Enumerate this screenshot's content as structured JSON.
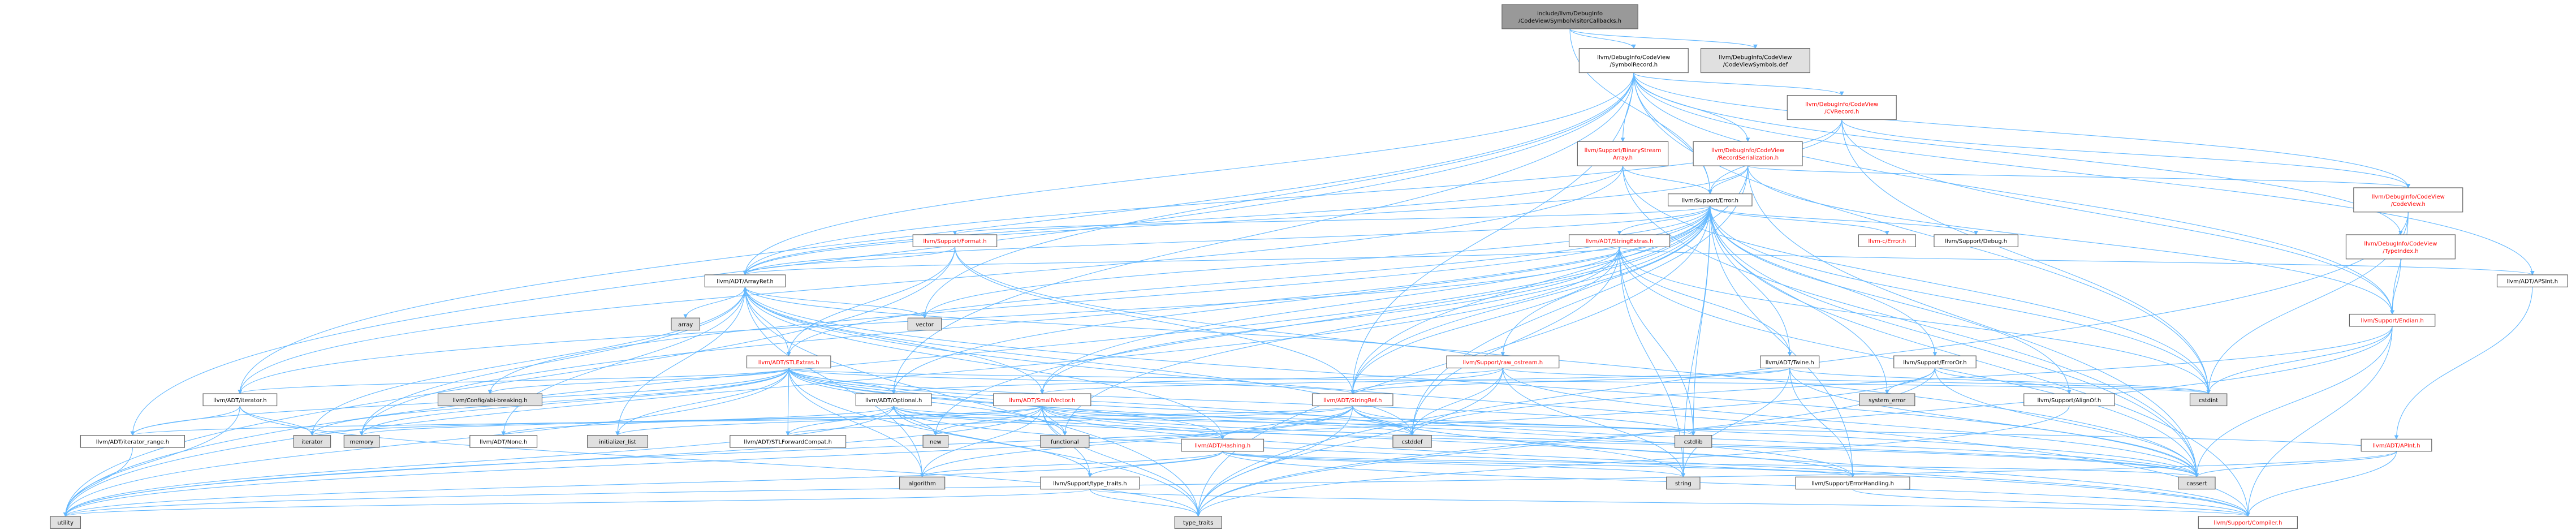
{
  "colors": {
    "edge": "#63b8ff",
    "arrowhead": "#63b8ff",
    "node_border": "#666666",
    "node_fill_default": "#ffffff",
    "node_fill_focus": "#999999",
    "node_fill_system": "#e0e0e0",
    "text_default": "#000000",
    "text_incomplete": "#ff0000"
  },
  "nodes": [
    {
      "id": "root",
      "lines": [
        "include/llvm/DebugInfo",
        "/CodeView/SymbolVisitorCallbacks.h"
      ],
      "kind": "focus"
    },
    {
      "id": "symrecord",
      "lines": [
        "llvm/DebugInfo/CodeView",
        "/SymbolRecord.h"
      ],
      "kind": "normal"
    },
    {
      "id": "cvsymbols",
      "lines": [
        "llvm/DebugInfo/CodeView",
        "/CodeViewSymbols.def"
      ],
      "kind": "system"
    },
    {
      "id": "cvrecord",
      "lines": [
        "llvm/DebugInfo/CodeView",
        "/CVRecord.h"
      ],
      "kind": "incomplete"
    },
    {
      "id": "binstream",
      "lines": [
        "llvm/Support/BinaryStream",
        "Array.h"
      ],
      "kind": "incomplete"
    },
    {
      "id": "recser",
      "lines": [
        "llvm/DebugInfo/CodeView",
        "/RecordSerialization.h"
      ],
      "kind": "incomplete"
    },
    {
      "id": "codeview",
      "lines": [
        "llvm/DebugInfo/CodeView",
        "/CodeView.h"
      ],
      "kind": "incomplete"
    },
    {
      "id": "error",
      "lines": [
        "llvm/Support/Error.h"
      ],
      "kind": "normal"
    },
    {
      "id": "format",
      "lines": [
        "llvm/Support/Format.h"
      ],
      "kind": "incomplete"
    },
    {
      "id": "cerror",
      "lines": [
        "llvm-c/Error.h"
      ],
      "kind": "incomplete"
    },
    {
      "id": "debug",
      "lines": [
        "llvm/Support/Debug.h"
      ],
      "kind": "normal"
    },
    {
      "id": "strextras",
      "lines": [
        "llvm/ADT/StringExtras.h"
      ],
      "kind": "incomplete"
    },
    {
      "id": "typeindex",
      "lines": [
        "llvm/DebugInfo/CodeView",
        "/TypeIndex.h"
      ],
      "kind": "incomplete"
    },
    {
      "id": "apsint",
      "lines": [
        "llvm/ADT/APSInt.h"
      ],
      "kind": "normal"
    },
    {
      "id": "arrayref",
      "lines": [
        "llvm/ADT/ArrayRef.h"
      ],
      "kind": "normal"
    },
    {
      "id": "endian",
      "lines": [
        "llvm/Support/Endian.h"
      ],
      "kind": "incomplete"
    },
    {
      "id": "array",
      "lines": [
        "array"
      ],
      "kind": "system"
    },
    {
      "id": "vector",
      "lines": [
        "vector"
      ],
      "kind": "system"
    },
    {
      "id": "stlextras",
      "lines": [
        "llvm/ADT/STLExtras.h"
      ],
      "kind": "incomplete"
    },
    {
      "id": "rawostream",
      "lines": [
        "llvm/Support/raw_ostream.h"
      ],
      "kind": "incomplete"
    },
    {
      "id": "twine",
      "lines": [
        "llvm/ADT/Twine.h"
      ],
      "kind": "normal"
    },
    {
      "id": "erroror",
      "lines": [
        "llvm/Support/ErrorOr.h"
      ],
      "kind": "normal"
    },
    {
      "id": "apint",
      "lines": [
        "llvm/ADT/APInt.h"
      ],
      "kind": "incomplete"
    },
    {
      "id": "iterator",
      "lines": [
        "llvm/ADT/iterator.h"
      ],
      "kind": "normal"
    },
    {
      "id": "confbreak",
      "lines": [
        "llvm/Config/abi-breaking.h"
      ],
      "kind": "system"
    },
    {
      "id": "optional",
      "lines": [
        "llvm/ADT/Optional.h"
      ],
      "kind": "normal"
    },
    {
      "id": "smallvector",
      "lines": [
        "llvm/ADT/SmallVector.h"
      ],
      "kind": "incomplete"
    },
    {
      "id": "stringref",
      "lines": [
        "llvm/ADT/StringRef.h"
      ],
      "kind": "incomplete"
    },
    {
      "id": "syserror",
      "lines": [
        "system_error"
      ],
      "kind": "system"
    },
    {
      "id": "cstdint",
      "lines": [
        "cstdint"
      ],
      "kind": "system"
    },
    {
      "id": "alignof",
      "lines": [
        "llvm/Support/AlignOf.h"
      ],
      "kind": "normal"
    },
    {
      "id": "iterrange",
      "lines": [
        "llvm/ADT/iterator_range.h"
      ],
      "kind": "normal"
    },
    {
      "id": "iteratorstd",
      "lines": [
        "iterator"
      ],
      "kind": "system"
    },
    {
      "id": "memory",
      "lines": [
        "memory"
      ],
      "kind": "system"
    },
    {
      "id": "none",
      "lines": [
        "llvm/ADT/None.h"
      ],
      "kind": "normal"
    },
    {
      "id": "initlist",
      "lines": [
        "initializer_list"
      ],
      "kind": "system"
    },
    {
      "id": "stlfwd",
      "lines": [
        "llvm/ADT/STLForwardCompat.h"
      ],
      "kind": "normal"
    },
    {
      "id": "new",
      "lines": [
        "new"
      ],
      "kind": "system"
    },
    {
      "id": "functional",
      "lines": [
        "functional"
      ],
      "kind": "system"
    },
    {
      "id": "hashing",
      "lines": [
        "llvm/ADT/Hashing.h"
      ],
      "kind": "incomplete"
    },
    {
      "id": "cstddef",
      "lines": [
        "cstddef"
      ],
      "kind": "system"
    },
    {
      "id": "cstdlib",
      "lines": [
        "cstdlib"
      ],
      "kind": "system"
    },
    {
      "id": "algorithm",
      "lines": [
        "algorithm"
      ],
      "kind": "system"
    },
    {
      "id": "typetraits",
      "lines": [
        "llvm/Support/type_traits.h"
      ],
      "kind": "normal"
    },
    {
      "id": "string",
      "lines": [
        "string"
      ],
      "kind": "system"
    },
    {
      "id": "errhandling",
      "lines": [
        "llvm/Support/ErrorHandling.h"
      ],
      "kind": "normal"
    },
    {
      "id": "cassert",
      "lines": [
        "cassert"
      ],
      "kind": "system"
    },
    {
      "id": "utility",
      "lines": [
        "utility"
      ],
      "kind": "system"
    },
    {
      "id": "type_traits",
      "lines": [
        "type_traits"
      ],
      "kind": "system"
    },
    {
      "id": "compiler",
      "lines": [
        "llvm/Support/Compiler.h"
      ],
      "kind": "incomplete"
    }
  ],
  "edges": [
    [
      "root",
      "symrecord"
    ],
    [
      "root",
      "cvsymbols"
    ],
    [
      "root",
      "error"
    ],
    [
      "symrecord",
      "cvrecord"
    ],
    [
      "symrecord",
      "binstream"
    ],
    [
      "symrecord",
      "recser"
    ],
    [
      "symrecord",
      "codeview"
    ],
    [
      "symrecord",
      "typeindex"
    ],
    [
      "symrecord",
      "apsint"
    ],
    [
      "symrecord",
      "arrayref"
    ],
    [
      "symrecord",
      "endian"
    ],
    [
      "symrecord",
      "stringref"
    ],
    [
      "symrecord",
      "optional"
    ],
    [
      "symrecord",
      "iterator"
    ],
    [
      "symrecord",
      "iterrange"
    ],
    [
      "symrecord",
      "cstdint"
    ],
    [
      "symrecord",
      "vector"
    ],
    [
      "symrecord",
      "error"
    ],
    [
      "cvrecord",
      "error"
    ],
    [
      "cvrecord",
      "codeview"
    ],
    [
      "cvrecord",
      "arrayref"
    ],
    [
      "cvrecord",
      "endian"
    ],
    [
      "cvrecord",
      "cstdint"
    ],
    [
      "binstream",
      "error"
    ],
    [
      "binstream",
      "arrayref"
    ],
    [
      "binstream",
      "iterator"
    ],
    [
      "binstream",
      "cassert"
    ],
    [
      "binstream",
      "cstdint"
    ],
    [
      "recser",
      "error"
    ],
    [
      "recser",
      "codeview"
    ],
    [
      "recser",
      "arrayref"
    ],
    [
      "recser",
      "stringref"
    ],
    [
      "recser",
      "endian"
    ],
    [
      "recser",
      "cstddef"
    ],
    [
      "recser",
      "cassert"
    ],
    [
      "recser",
      "cinttypes"
    ],
    [
      "codeview",
      "endian"
    ],
    [
      "codeview",
      "type_traits"
    ],
    [
      "codeview",
      "cstdint"
    ],
    [
      "error",
      "format"
    ],
    [
      "error",
      "cerror"
    ],
    [
      "error",
      "debug"
    ],
    [
      "error",
      "strextras"
    ],
    [
      "error",
      "stringref"
    ],
    [
      "error",
      "arrayref"
    ],
    [
      "error",
      "twine"
    ],
    [
      "error",
      "erroror"
    ],
    [
      "error",
      "rawostream"
    ],
    [
      "error",
      "smallvector"
    ],
    [
      "error",
      "stlextras"
    ],
    [
      "error",
      "confbreak"
    ],
    [
      "error",
      "alignof"
    ],
    [
      "error",
      "compiler"
    ],
    [
      "error",
      "errhandling"
    ],
    [
      "error",
      "cassert"
    ],
    [
      "error",
      "cstdint"
    ],
    [
      "error",
      "cstdlib"
    ],
    [
      "error",
      "functional"
    ],
    [
      "error",
      "memory"
    ],
    [
      "error",
      "new"
    ],
    [
      "error",
      "optional"
    ],
    [
      "error",
      "string"
    ],
    [
      "error",
      "syserror"
    ],
    [
      "error",
      "type_traits"
    ],
    [
      "error",
      "utility"
    ],
    [
      "error",
      "vector"
    ],
    [
      "format",
      "arrayref"
    ],
    [
      "format",
      "stlextras"
    ],
    [
      "format",
      "stringref"
    ],
    [
      "format",
      "cassert"
    ],
    [
      "format",
      "cstdio"
    ],
    [
      "format",
      "tuple"
    ],
    [
      "format",
      "utility"
    ],
    [
      "strextras",
      "apsint"
    ],
    [
      "strextras",
      "arrayref"
    ],
    [
      "strextras",
      "smallvector"
    ],
    [
      "strextras",
      "stringref"
    ],
    [
      "strextras",
      "twine"
    ],
    [
      "strextras",
      "cassert"
    ],
    [
      "strextras",
      "cstddef"
    ],
    [
      "strextras",
      "cstdint"
    ],
    [
      "strextras",
      "cstdlib"
    ],
    [
      "strextras",
      "cstring"
    ],
    [
      "strextras",
      "iterator"
    ],
    [
      "strextras",
      "string"
    ],
    [
      "strextras",
      "utility"
    ],
    [
      "typeindex",
      "endian"
    ],
    [
      "typeindex",
      "cinttypes"
    ],
    [
      "apsint",
      "apint"
    ],
    [
      "arrayref",
      "hashing"
    ],
    [
      "arrayref",
      "none"
    ],
    [
      "arrayref",
      "smallvector"
    ],
    [
      "arrayref",
      "stlextras"
    ],
    [
      "arrayref",
      "compiler"
    ],
    [
      "arrayref",
      "algorithm"
    ],
    [
      "arrayref",
      "array"
    ],
    [
      "arrayref",
      "cassert"
    ],
    [
      "arrayref",
      "cstddef"
    ],
    [
      "arrayref",
      "initlist"
    ],
    [
      "arrayref",
      "iteratorstd"
    ],
    [
      "arrayref",
      "memory"
    ],
    [
      "arrayref",
      "type_traits"
    ],
    [
      "arrayref",
      "vector"
    ],
    [
      "endian",
      "compiler"
    ],
    [
      "endian",
      "cassert"
    ],
    [
      "endian",
      "cstddef"
    ],
    [
      "endian",
      "cstdint"
    ],
    [
      "endian",
      "cstring"
    ],
    [
      "endian",
      "type_traits"
    ],
    [
      "stlextras",
      "optional"
    ],
    [
      "stlextras",
      "stlfwd"
    ],
    [
      "stlextras",
      "iterator"
    ],
    [
      "stlextras",
      "iterrange"
    ],
    [
      "stlextras",
      "confbreak"
    ],
    [
      "stlextras",
      "errhandling"
    ],
    [
      "stlextras",
      "algorithm"
    ],
    [
      "stlextras",
      "cassert"
    ],
    [
      "stlextras",
      "cstddef"
    ],
    [
      "stlextras",
      "cstdint"
    ],
    [
      "stlextras",
      "cstdlib"
    ],
    [
      "stlextras",
      "functional"
    ],
    [
      "stlextras",
      "initlist"
    ],
    [
      "stlextras",
      "iteratorstd"
    ],
    [
      "stlextras",
      "limits"
    ],
    [
      "stlextras",
      "memory"
    ],
    [
      "stlextras",
      "tuple"
    ],
    [
      "stlextras",
      "type_traits"
    ],
    [
      "stlextras",
      "utility"
    ],
    [
      "stlextras",
      "hashing"
    ],
    [
      "stlextras",
      "stringref"
    ],
    [
      "rawostream",
      "arrayref"
    ],
    [
      "rawostream",
      "stringref"
    ],
    [
      "rawostream",
      "cassert"
    ],
    [
      "rawostream",
      "cstddef"
    ],
    [
      "rawostream",
      "cstdint"
    ],
    [
      "rawostream",
      "cstring"
    ],
    [
      "rawostream",
      "string"
    ],
    [
      "rawostream",
      "system_error"
    ],
    [
      "rawostream",
      "type_traits"
    ],
    [
      "rawostream",
      "optional"
    ],
    [
      "twine",
      "smallvector"
    ],
    [
      "twine",
      "stringref"
    ],
    [
      "twine",
      "errhandling"
    ],
    [
      "twine",
      "cassert"
    ],
    [
      "twine",
      "cstdint"
    ],
    [
      "twine",
      "string"
    ],
    [
      "erroror",
      "alignof"
    ],
    [
      "erroror",
      "cassert"
    ],
    [
      "erroror",
      "syserror"
    ],
    [
      "erroror",
      "type_traits"
    ],
    [
      "erroror",
      "utility"
    ],
    [
      "apint",
      "compiler"
    ],
    [
      "apint",
      "cassert"
    ],
    [
      "apint",
      "utility"
    ],
    [
      "apint",
      "optional"
    ],
    [
      "iterator",
      "iterrange"
    ],
    [
      "iterator",
      "iteratorstd"
    ],
    [
      "iterator",
      "type_traits"
    ],
    [
      "iterator",
      "utility"
    ],
    [
      "optional",
      "none"
    ],
    [
      "optional",
      "stlfwd"
    ],
    [
      "optional",
      "compiler"
    ],
    [
      "optional",
      "typetraits"
    ],
    [
      "optional",
      "cassert"
    ],
    [
      "optional",
      "new"
    ],
    [
      "optional",
      "utility"
    ],
    [
      "optional",
      "hashing"
    ],
    [
      "smallvector",
      "compiler"
    ],
    [
      "smallvector",
      "typetraits"
    ],
    [
      "smallvector",
      "algorithm"
    ],
    [
      "smallvector",
      "cassert"
    ],
    [
      "smallvector",
      "cstddef"
    ],
    [
      "smallvector",
      "cstdlib"
    ],
    [
      "smallvector",
      "cstring"
    ],
    [
      "smallvector",
      "functional"
    ],
    [
      "smallvector",
      "initlist"
    ],
    [
      "smallvector",
      "iteratorstd"
    ],
    [
      "smallvector",
      "limits"
    ],
    [
      "smallvector",
      "memory"
    ],
    [
      "smallvector",
      "new"
    ],
    [
      "smallvector",
      "type_traits"
    ],
    [
      "smallvector",
      "utility"
    ],
    [
      "smallvector",
      "errhandling"
    ],
    [
      "stringref",
      "stlfwd"
    ],
    [
      "stringref",
      "iterrange"
    ],
    [
      "stringref",
      "compiler"
    ],
    [
      "stringref",
      "algorithm"
    ],
    [
      "stringref",
      "cassert"
    ],
    [
      "stringref",
      "cstddef"
    ],
    [
      "stringref",
      "cstring"
    ],
    [
      "stringref",
      "limits"
    ],
    [
      "stringref",
      "string"
    ],
    [
      "stringref",
      "type_traits"
    ],
    [
      "stringref",
      "utility"
    ],
    [
      "stringref",
      "hashing"
    ],
    [
      "alignof",
      "type_traits"
    ],
    [
      "iterrange",
      "utility"
    ],
    [
      "hashing",
      "errhandling"
    ],
    [
      "hashing",
      "typetraits"
    ],
    [
      "hashing",
      "compiler"
    ],
    [
      "hashing",
      "algorithm"
    ],
    [
      "hashing",
      "cassert"
    ],
    [
      "hashing",
      "cstring"
    ],
    [
      "hashing",
      "string"
    ],
    [
      "hashing",
      "tuple"
    ],
    [
      "hashing",
      "utility"
    ],
    [
      "typetraits",
      "compiler"
    ],
    [
      "typetraits",
      "type_traits"
    ],
    [
      "typetraits",
      "utility"
    ],
    [
      "errhandling",
      "compiler"
    ]
  ]
}
